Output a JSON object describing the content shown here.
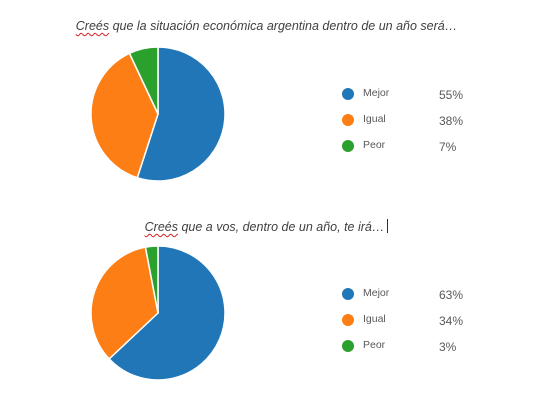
{
  "chart_data": [
    {
      "type": "pie",
      "title_parts": [
        "Creés",
        " que la situación económica argentina dentro de un año será…"
      ],
      "categories": [
        "Mejor",
        "Igual",
        "Peor"
      ],
      "values": [
        55,
        38,
        7
      ],
      "value_labels": [
        "55%",
        "38%",
        "7%"
      ],
      "colors": [
        "#2176b8",
        "#fd7e14",
        "#2ca02c"
      ],
      "legend_position": "right"
    },
    {
      "type": "pie",
      "title_parts": [
        "Creés",
        " que a vos, dentro de un año, te irá…"
      ],
      "categories": [
        "Mejor",
        "Igual",
        "Peor"
      ],
      "values": [
        63,
        34,
        3
      ],
      "value_labels": [
        "63%",
        "34%",
        "3%"
      ],
      "colors": [
        "#2176b8",
        "#fd7e14",
        "#2ca02c"
      ],
      "legend_position": "right"
    }
  ]
}
